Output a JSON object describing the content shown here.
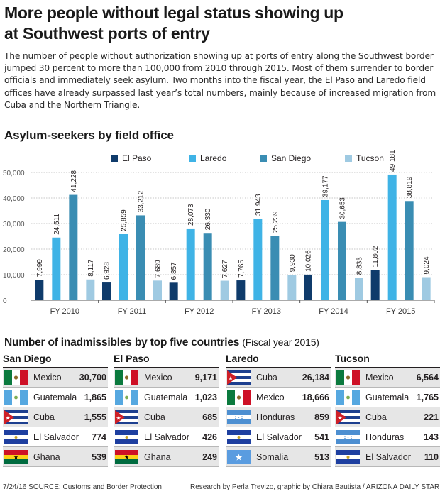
{
  "headline": {
    "line1": "More people without legal status showing up",
    "line2": "at Southwest ports of entry"
  },
  "intro": "The number of people without authorization showing up at ports of entry along the Southwest border jumped 30 percent to more than 100,000 from 2010 through 2015. Most of them surrender to border officials and immediately seek asylum. Two months into the fiscal year, the El Paso and Laredo field offices have already surpassed last year’s total numbers, mainly because of increased migration from Cuba and the Northern Triangle.",
  "chart_data": {
    "type": "bar",
    "title": "Asylum-seekers by field office",
    "categories": [
      "FY 2010",
      "FY 2011",
      "FY 2012",
      "FY 2013",
      "FY 2014",
      "FY 2015"
    ],
    "series": [
      {
        "name": "El Paso",
        "color": "#0f3b6b",
        "values": [
          7999,
          6928,
          6857,
          7765,
          10026,
          11802
        ],
        "labels": [
          "7,999",
          "6,928",
          "6,857",
          "7,765",
          "10,026",
          "11,802"
        ]
      },
      {
        "name": "Laredo",
        "color": "#3fb3e6",
        "values": [
          24511,
          25859,
          28073,
          31943,
          39177,
          49181
        ],
        "labels": [
          "24,511",
          "25,859",
          "28,073",
          "31,943",
          "39,177",
          "49,181"
        ]
      },
      {
        "name": "San Diego",
        "color": "#3a8db3",
        "values": [
          41228,
          33212,
          26330,
          25239,
          30653,
          38819
        ],
        "labels": [
          "41,228",
          "33,212",
          "26,330",
          "25,239",
          "30,653",
          "38,819"
        ]
      },
      {
        "name": "Tucson",
        "color": "#9fcae2",
        "values": [
          8117,
          7689,
          7627,
          9930,
          8833,
          9024
        ],
        "labels": [
          "8,117",
          "7,689",
          "7,627",
          "9,930",
          "8,833",
          "9,024"
        ]
      }
    ],
    "yticks": [
      0,
      10000,
      20000,
      30000,
      40000,
      50000
    ],
    "ytick_labels": [
      "0",
      "10,000",
      "20,000",
      "30,000",
      "40,000",
      "50,000"
    ],
    "ylim": [
      0,
      50000
    ],
    "legend": "top-center",
    "grid": true
  },
  "inadmissibles": {
    "title": "Number of inadmissibles by top five countries",
    "subtitle": "(Fiscal year 2015)",
    "columns": [
      {
        "office": "San Diego",
        "rows": [
          {
            "country": "Mexico",
            "value": "30,700",
            "flag": "mexico-flag-icon"
          },
          {
            "country": "Guatemala",
            "value": "1,865",
            "flag": "guatemala-flag-icon"
          },
          {
            "country": "Cuba",
            "value": "1,555",
            "flag": "cuba-flag-icon"
          },
          {
            "country": "El Salvador",
            "value": "774",
            "flag": "el-salvador-flag-icon"
          },
          {
            "country": "Ghana",
            "value": "539",
            "flag": "ghana-flag-icon"
          }
        ]
      },
      {
        "office": "El Paso",
        "rows": [
          {
            "country": "Mexico",
            "value": "9,171",
            "flag": "mexico-flag-icon"
          },
          {
            "country": "Guatemala",
            "value": "1,023",
            "flag": "guatemala-flag-icon"
          },
          {
            "country": "Cuba",
            "value": "685",
            "flag": "cuba-flag-icon"
          },
          {
            "country": "El Salvador",
            "value": "426",
            "flag": "el-salvador-flag-icon"
          },
          {
            "country": "Ghana",
            "value": "249",
            "flag": "ghana-flag-icon"
          }
        ]
      },
      {
        "office": "Laredo",
        "rows": [
          {
            "country": "Cuba",
            "value": "26,184",
            "flag": "cuba-flag-icon"
          },
          {
            "country": "Mexico",
            "value": "18,666",
            "flag": "mexico-flag-icon"
          },
          {
            "country": "Honduras",
            "value": "859",
            "flag": "honduras-flag-icon"
          },
          {
            "country": "El Salvador",
            "value": "541",
            "flag": "el-salvador-flag-icon"
          },
          {
            "country": "Somalia",
            "value": "513",
            "flag": "somalia-flag-icon"
          }
        ]
      },
      {
        "office": "Tucson",
        "rows": [
          {
            "country": "Mexico",
            "value": "6,564",
            "flag": "mexico-flag-icon"
          },
          {
            "country": "Guatemala",
            "value": "1,765",
            "flag": "guatemala-flag-icon"
          },
          {
            "country": "Cuba",
            "value": "221",
            "flag": "cuba-flag-icon"
          },
          {
            "country": "Honduras",
            "value": "143",
            "flag": "honduras-flag-icon"
          },
          {
            "country": "El Salvador",
            "value": "110",
            "flag": "el-salvador-flag-icon"
          }
        ]
      }
    ]
  },
  "footer": {
    "left": "7/24/16  SOURCE: Customs and Border Protection",
    "right": "Research by Perla Trevizo, graphic by Chiara Bautista  /  ARIZONA DAILY STAR"
  }
}
